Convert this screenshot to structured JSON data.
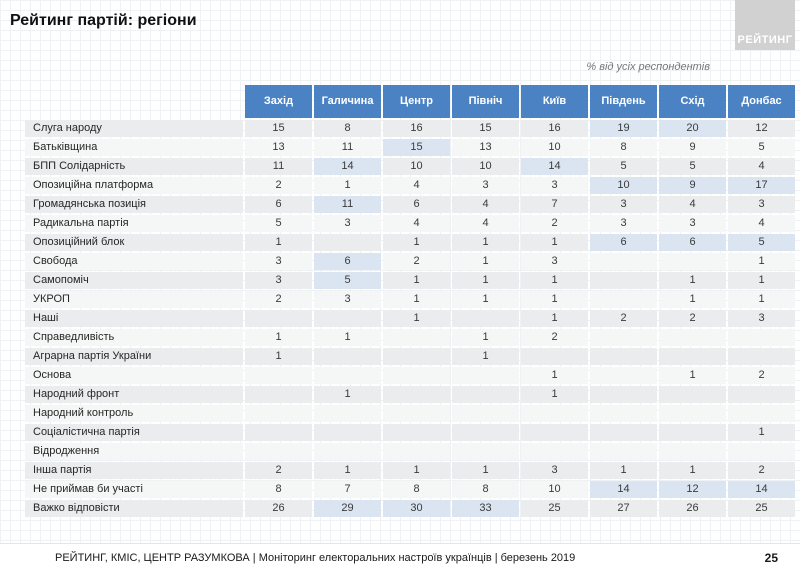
{
  "slide": {
    "title": "Рейтинг партій: регіони",
    "logo_text": "РЕЙТИНГ",
    "subtitle": "% від усіх респондентів",
    "footer": {
      "source": "РЕЙТИНГ, КМІС, ЦЕНТР РАЗУМКОВА  | Моніторинг електоральних настроїв українців | березень 2019",
      "page_number": "25"
    }
  },
  "colors": {
    "header_bg": "#4b82c4",
    "header_text": "#ffffff",
    "row_bg_odd": "#ebeced",
    "row_bg_even": "#f5f6f6",
    "highlight_bg": "#dbe5f1",
    "logo_bg": "#d1d1d1"
  },
  "chart_data": {
    "type": "table",
    "title": "Рейтинг партій: регіони",
    "unit": "% від усіх респондентів",
    "columns": [
      "Захід",
      "Галичина",
      "Центр",
      "Північ",
      "Київ",
      "Південь",
      "Схід",
      "Донбас"
    ],
    "rows": [
      {
        "label": "Слуга народу",
        "values": [
          "15",
          "8",
          "16",
          "15",
          "16",
          "19",
          "20",
          "12"
        ],
        "highlight": [
          5,
          6
        ]
      },
      {
        "label": "Батьківщина",
        "values": [
          "13",
          "11",
          "15",
          "13",
          "10",
          "8",
          "9",
          "5"
        ],
        "highlight": [
          2
        ]
      },
      {
        "label": "БПП Солідарність",
        "values": [
          "11",
          "14",
          "10",
          "10",
          "14",
          "5",
          "5",
          "4"
        ],
        "highlight": [
          1,
          4
        ]
      },
      {
        "label": "Опозиційна платформа",
        "values": [
          "2",
          "1",
          "4",
          "3",
          "3",
          "10",
          "9",
          "17"
        ],
        "highlight": [
          5,
          6,
          7
        ]
      },
      {
        "label": "Громадянська позиція",
        "values": [
          "6",
          "11",
          "6",
          "4",
          "7",
          "3",
          "4",
          "3"
        ],
        "highlight": [
          1
        ]
      },
      {
        "label": "Радикальна партія",
        "values": [
          "5",
          "3",
          "4",
          "4",
          "2",
          "3",
          "3",
          "4"
        ],
        "highlight": []
      },
      {
        "label": "Опозиційний блок",
        "values": [
          "1",
          "",
          "1",
          "1",
          "1",
          "6",
          "6",
          "5"
        ],
        "highlight": [
          5,
          6,
          7
        ]
      },
      {
        "label": "Свобода",
        "values": [
          "3",
          "6",
          "2",
          "1",
          "3",
          "",
          "",
          "1"
        ],
        "highlight": [
          1
        ]
      },
      {
        "label": "Самопоміч",
        "values": [
          "3",
          "5",
          "1",
          "1",
          "1",
          "",
          "1",
          "1"
        ],
        "highlight": [
          1
        ]
      },
      {
        "label": "УКРОП",
        "values": [
          "2",
          "3",
          "1",
          "1",
          "1",
          "",
          "1",
          "1"
        ],
        "highlight": []
      },
      {
        "label": "Наші",
        "values": [
          "",
          "",
          "1",
          "",
          "1",
          "2",
          "2",
          "3"
        ],
        "highlight": []
      },
      {
        "label": "Справедливість",
        "values": [
          "1",
          "1",
          "",
          "1",
          "2",
          "",
          "",
          ""
        ],
        "highlight": []
      },
      {
        "label": "Аграрна партія України",
        "values": [
          "1",
          "",
          "",
          "1",
          "",
          "",
          "",
          ""
        ],
        "highlight": []
      },
      {
        "label": "Основа",
        "values": [
          "",
          "",
          "",
          "",
          "1",
          "",
          "1",
          "2"
        ],
        "highlight": []
      },
      {
        "label": "Народний фронт",
        "values": [
          "",
          "1",
          "",
          "",
          "1",
          "",
          "",
          ""
        ],
        "highlight": []
      },
      {
        "label": "Народний контроль",
        "values": [
          "",
          "",
          "",
          "",
          "",
          "",
          "",
          ""
        ],
        "highlight": []
      },
      {
        "label": "Соціалістична партія",
        "values": [
          "",
          "",
          "",
          "",
          "",
          "",
          "",
          "1"
        ],
        "highlight": []
      },
      {
        "label": "Відродження",
        "values": [
          "",
          "",
          "",
          "",
          "",
          "",
          "",
          ""
        ],
        "highlight": []
      },
      {
        "label": "Інша партія",
        "values": [
          "2",
          "1",
          "1",
          "1",
          "3",
          "1",
          "1",
          "2"
        ],
        "highlight": []
      },
      {
        "label": "Не приймав би участі",
        "values": [
          "8",
          "7",
          "8",
          "8",
          "10",
          "14",
          "12",
          "14"
        ],
        "highlight": [
          5,
          6,
          7
        ]
      },
      {
        "label": "Важко відповісти",
        "values": [
          "26",
          "29",
          "30",
          "33",
          "25",
          "27",
          "26",
          "25"
        ],
        "highlight": [
          1,
          2,
          3
        ]
      }
    ]
  }
}
